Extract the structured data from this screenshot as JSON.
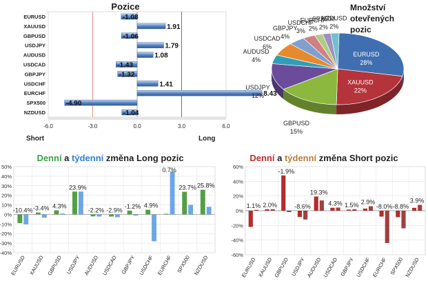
{
  "chart_data": [
    {
      "type": "bar",
      "orientation": "horizontal",
      "title": "Pozice",
      "categories": [
        "EURUSD",
        "XAUUSD",
        "GBPUSD",
        "USDJPY",
        "AUDUSD",
        "USDCAD",
        "GBPJPY",
        "USDCHF",
        "EURCHF",
        "SPX500",
        "NZDUSD"
      ],
      "values": [
        -1.08,
        1.91,
        -1.06,
        1.79,
        1.08,
        -1.43,
        -1.32,
        1.41,
        8.43,
        -4.9,
        -1.04
      ],
      "value_labels": [
        "-1.08",
        "1.91",
        "-1.06",
        "1.79",
        "1.08",
        "-1.43",
        "-1.32",
        "1.41",
        "8.43",
        "-4.90",
        "-1.04"
      ],
      "xlim": [
        -6,
        6
      ],
      "xticks": [
        "-6.0",
        "-3.0",
        "0.0",
        "3.0",
        "6.0"
      ],
      "xtick_values": [
        -6,
        -3,
        0,
        3,
        6
      ],
      "short_label": "Short",
      "long_label": "Long",
      "threshold_lines": [
        -3,
        3
      ],
      "colors": {
        "bar": "#4f7fc0",
        "short_line": "#e08c8c",
        "long_line": "#3a9a3a"
      }
    },
    {
      "type": "pie",
      "title": "Množství otevřených pozic",
      "title_lines": [
        "Množství",
        "otevřených",
        "pozic"
      ],
      "slices": [
        {
          "label": "EURUSD",
          "value": 28,
          "text": "28%",
          "color": "#3f6fb0"
        },
        {
          "label": "XAUUSD",
          "value": 22,
          "text": "22%",
          "color": "#b5333a"
        },
        {
          "label": "GBPUSD",
          "value": 15,
          "text": "15%",
          "color": "#8db83f"
        },
        {
          "label": "USDJPY",
          "value": 12,
          "text": "12%",
          "color": "#6a4c9a"
        },
        {
          "label": "AUDUSD",
          "value": 4,
          "text": "4%",
          "color": "#2f9fb8"
        },
        {
          "label": "USDCAD",
          "value": 6,
          "text": "6%",
          "color": "#e68a2e"
        },
        {
          "label": "GBPJPY",
          "value": 4,
          "text": "4%",
          "color": "#7f9fd0"
        },
        {
          "label": "USDCHF",
          "value": 3,
          "text": "3%",
          "color": "#d08080"
        },
        {
          "label": "EURCHF",
          "value": 2,
          "text": "2%",
          "color": "#b0cc80"
        },
        {
          "label": "SPX500",
          "value": 2,
          "text": "2%",
          "color": "#a090c0"
        },
        {
          "label": "NZDUSD",
          "value": 2,
          "text": "2%",
          "color": "#70c0d0"
        }
      ]
    },
    {
      "type": "bar",
      "title_parts": [
        "Denní",
        " a ",
        "týdenní",
        " změna Long pozic"
      ],
      "title_colors": [
        "#3aa046",
        "#222222",
        "#2f80d0",
        "#222222"
      ],
      "categories": [
        "EURUSD",
        "XAUUSD",
        "GBPUSD",
        "USDJPY",
        "AUDUSD",
        "USDCAD",
        "GBPJPY",
        "USDCHF",
        "EURCHF",
        "SPX500",
        "NZDUSD"
      ],
      "series": [
        {
          "values": [
            -9,
            2,
            4.3,
            23.9,
            -2,
            -2.2,
            4,
            4.9,
            0.7,
            23.7,
            25.8
          ],
          "color": "#4a9a3a"
        },
        {
          "values": [
            -10.4,
            -3.4,
            1,
            23.9,
            -2.2,
            -2.9,
            -1.2,
            -28,
            45,
            10,
            8
          ],
          "color": "#4a90e0"
        }
      ],
      "data_labels": [
        "-10.4%",
        "-3.4%",
        "4.3%",
        "23.9%",
        "-2.2%",
        "-2.9%",
        "-1.2%",
        "4.9%",
        "0.7%",
        "23.7%",
        "25.8%"
      ],
      "ylim": [
        -40,
        50
      ],
      "yticks": [
        "50%",
        "40%",
        "30%",
        "20%",
        "10%",
        "0%",
        "-10%",
        "-20%",
        "-30%",
        "-40%"
      ],
      "ytick_values": [
        50,
        40,
        30,
        20,
        10,
        0,
        -10,
        -20,
        -30,
        -40
      ],
      "grid": true
    },
    {
      "type": "bar",
      "title_parts": [
        "Denní",
        " a ",
        "týdenní",
        " změna Short pozic"
      ],
      "title_colors": [
        "#c02a2a",
        "#222222",
        "#c07a3a",
        "#222222"
      ],
      "categories": [
        "EURUSD",
        "XAUUSD",
        "GBPUSD",
        "USDJPY",
        "AUDUSD",
        "USDCAD",
        "GBPJPY",
        "USDCHF",
        "EURCHF",
        "SPX500",
        "NZDUSD"
      ],
      "series": [
        {
          "values": [
            -22,
            2,
            48,
            -8.6,
            19.3,
            4,
            1.5,
            2.9,
            -8,
            -8.8,
            3.9
          ],
          "color": "#b02020"
        },
        {
          "values": [
            1.1,
            2,
            -1.9,
            -12,
            14,
            4.3,
            2,
            6,
            -44,
            -24,
            8
          ],
          "color": "#8a1010"
        }
      ],
      "data_labels": [
        "1.1%",
        "2.0%",
        "-1.9%",
        "-8.6%",
        "19.3%",
        "4.3%",
        "1.5%",
        "2.9%",
        "-8.0%",
        "-8.8%",
        "3.9%"
      ],
      "ylim": [
        -60,
        60
      ],
      "yticks": [
        "60%",
        "40%",
        "20%",
        "0%",
        "-20%",
        "-40%",
        "-60%"
      ],
      "ytick_values": [
        60,
        40,
        20,
        0,
        -20,
        -40,
        -60
      ],
      "grid": true
    }
  ]
}
